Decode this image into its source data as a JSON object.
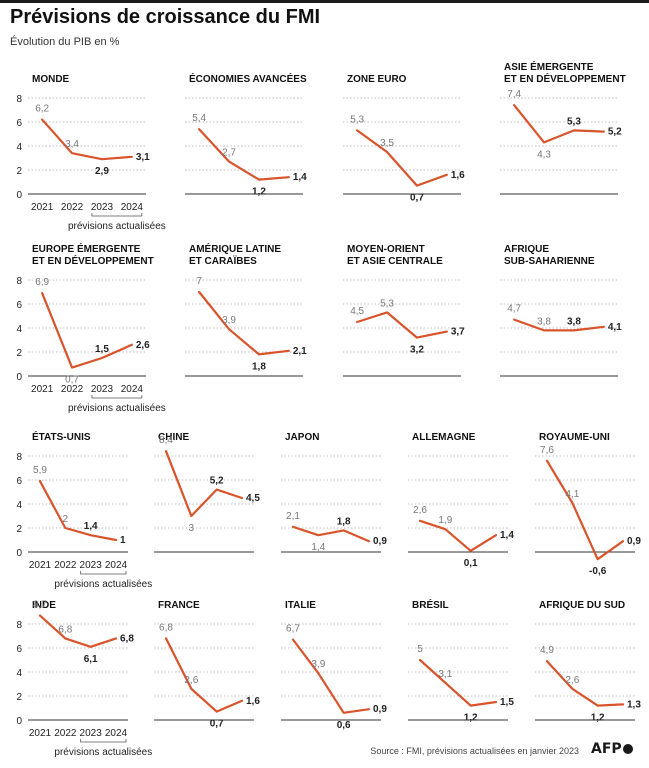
{
  "title": "Prévisions de croissance du FMI",
  "subtitle": "Évolution du PIB en %",
  "source": "Source : FMI, prévisions actualisées en janvier 2023",
  "logo": "AFP",
  "colors": {
    "line": "#d9532b",
    "grid": "#aaaaaa",
    "text": "#222222",
    "muted": "#777777"
  },
  "chart_data": [
    {
      "type": "line",
      "title": "MONDE",
      "x": [
        "2021",
        "2022",
        "2023",
        "2024"
      ],
      "y": [
        6.2,
        3.4,
        2.9,
        3.1
      ],
      "labels": [
        "6,2",
        "3,4",
        "2,9",
        "3,1"
      ],
      "ylim": [
        0,
        8
      ],
      "yticks": [
        "8",
        "6",
        "4",
        "2",
        "0"
      ],
      "xlabels": [
        "2021",
        "2022",
        "2023",
        "2024"
      ],
      "note": "prévisions actualisées"
    },
    {
      "type": "line",
      "title": "ÉCONOMIES AVANCÉES",
      "x": [
        "2021",
        "2022",
        "2023",
        "2024"
      ],
      "y": [
        5.4,
        2.7,
        1.2,
        1.4
      ],
      "labels": [
        "5,4",
        "2,7",
        "1,2",
        "1,4"
      ],
      "ylim": [
        0,
        8
      ]
    },
    {
      "type": "line",
      "title": "ZONE EURO",
      "x": [
        "2021",
        "2022",
        "2023",
        "2024"
      ],
      "y": [
        5.3,
        3.5,
        0.7,
        1.6
      ],
      "labels": [
        "5,3",
        "3,5",
        "0,7",
        "1,6"
      ],
      "ylim": [
        0,
        8
      ]
    },
    {
      "type": "line",
      "title": "ASIE ÉMERGENTE ET EN DÉVELOPPEMENT",
      "x": [
        "2021",
        "2022",
        "2023",
        "2024"
      ],
      "y": [
        7.4,
        4.3,
        5.3,
        5.2
      ],
      "labels": [
        "7,4",
        "4,3",
        "5,3",
        "5,2"
      ],
      "ylim": [
        0,
        8
      ]
    },
    {
      "type": "line",
      "title": "EUROPE ÉMERGENTE ET EN DÉVELOPPEMENT",
      "x": [
        "2021",
        "2022",
        "2023",
        "2024"
      ],
      "y": [
        6.9,
        0.7,
        1.5,
        2.6
      ],
      "labels": [
        "6,9",
        "0,7",
        "1,5",
        "2,6"
      ],
      "ylim": [
        0,
        8
      ],
      "yticks": [
        "8",
        "6",
        "4",
        "2",
        "0"
      ],
      "xlabels": [
        "2021",
        "2022",
        "2023",
        "2024"
      ],
      "note": "prévisions actualisées"
    },
    {
      "type": "line",
      "title": "AMÉRIQUE LATINE ET CARAÏBES",
      "x": [
        "2021",
        "2022",
        "2023",
        "2024"
      ],
      "y": [
        7.0,
        3.9,
        1.8,
        2.1
      ],
      "labels": [
        "7",
        "3,9",
        "1,8",
        "2,1"
      ],
      "ylim": [
        0,
        8
      ]
    },
    {
      "type": "line",
      "title": "MOYEN-ORIENT ET ASIE CENTRALE",
      "x": [
        "2021",
        "2022",
        "2023",
        "2024"
      ],
      "y": [
        4.5,
        5.3,
        3.2,
        3.7
      ],
      "labels": [
        "4,5",
        "5,3",
        "3,2",
        "3,7"
      ],
      "ylim": [
        0,
        8
      ]
    },
    {
      "type": "line",
      "title": "AFRIQUE SUB-SAHARIENNE",
      "x": [
        "2021",
        "2022",
        "2023",
        "2024"
      ],
      "y": [
        4.7,
        3.8,
        3.8,
        4.1
      ],
      "labels": [
        "4,7",
        "3,8",
        "3,8",
        "4,1"
      ],
      "ylim": [
        0,
        8
      ]
    },
    {
      "type": "line",
      "title": "ÉTATS-UNIS",
      "x": [
        "2021",
        "2022",
        "2023",
        "2024"
      ],
      "y": [
        5.9,
        2.0,
        1.4,
        1.0
      ],
      "labels": [
        "5,9",
        "2",
        "1,4",
        "1"
      ],
      "ylim": [
        0,
        8
      ],
      "yticks": [
        "8",
        "6",
        "4",
        "2",
        "0"
      ],
      "xlabels": [
        "2021",
        "2022",
        "2023",
        "2024"
      ],
      "note": "prévisions actualisées"
    },
    {
      "type": "line",
      "title": "CHINE",
      "x": [
        "2021",
        "2022",
        "2023",
        "2024"
      ],
      "y": [
        8.4,
        3.0,
        5.2,
        4.5
      ],
      "labels": [
        "8,4",
        "3",
        "5,2",
        "4,5"
      ],
      "ylim": [
        0,
        8
      ]
    },
    {
      "type": "line",
      "title": "JAPON",
      "x": [
        "2021",
        "2022",
        "2023",
        "2024"
      ],
      "y": [
        2.1,
        1.4,
        1.8,
        0.9
      ],
      "labels": [
        "2,1",
        "1,4",
        "1,8",
        "0,9"
      ],
      "ylim": [
        0,
        8
      ]
    },
    {
      "type": "line",
      "title": "ALLEMAGNE",
      "x": [
        "2021",
        "2022",
        "2023",
        "2024"
      ],
      "y": [
        2.6,
        1.9,
        0.1,
        1.4
      ],
      "labels": [
        "2,6",
        "1,9",
        "0,1",
        "1,4"
      ],
      "ylim": [
        0,
        8
      ]
    },
    {
      "type": "line",
      "title": "ROYAUME-UNI",
      "x": [
        "2021",
        "2022",
        "2023",
        "2024"
      ],
      "y": [
        7.6,
        4.1,
        -0.6,
        0.9
      ],
      "labels": [
        "7,6",
        "4,1",
        "-0,6",
        "0,9"
      ],
      "ylim": [
        0,
        8
      ]
    },
    {
      "type": "line",
      "title": "INDE",
      "x": [
        "2021",
        "2022",
        "2023",
        "2024"
      ],
      "y": [
        8.7,
        6.8,
        6.1,
        6.8
      ],
      "labels": [
        "8,7",
        "6,8",
        "6,1",
        "6,8"
      ],
      "ylim": [
        0,
        8
      ],
      "yticks": [
        "8",
        "6",
        "4",
        "2",
        "0"
      ],
      "xlabels": [
        "2021",
        "2022",
        "2023",
        "2024"
      ],
      "note": "prévisions actualisées"
    },
    {
      "type": "line",
      "title": "FRANCE",
      "x": [
        "2021",
        "2022",
        "2023",
        "2024"
      ],
      "y": [
        6.8,
        2.6,
        0.7,
        1.6
      ],
      "labels": [
        "6,8",
        "2,6",
        "0,7",
        "1,6"
      ],
      "ylim": [
        0,
        8
      ]
    },
    {
      "type": "line",
      "title": "ITALIE",
      "x": [
        "2021",
        "2022",
        "2023",
        "2024"
      ],
      "y": [
        6.7,
        3.9,
        0.6,
        0.9
      ],
      "labels": [
        "6,7",
        "3,9",
        "0,6",
        "0,9"
      ],
      "ylim": [
        0,
        8
      ]
    },
    {
      "type": "line",
      "title": "BRÉSIL",
      "x": [
        "2021",
        "2022",
        "2023",
        "2024"
      ],
      "y": [
        5.0,
        3.1,
        1.2,
        1.5
      ],
      "labels": [
        "5",
        "3,1",
        "1,2",
        "1,5"
      ],
      "ylim": [
        0,
        8
      ]
    },
    {
      "type": "line",
      "title": "AFRIQUE DU SUD",
      "x": [
        "2021",
        "2022",
        "2023",
        "2024"
      ],
      "y": [
        4.9,
        2.6,
        1.2,
        1.3
      ],
      "labels": [
        "4,9",
        "2,6",
        "1,2",
        "1,3"
      ],
      "ylim": [
        0,
        8
      ]
    }
  ]
}
